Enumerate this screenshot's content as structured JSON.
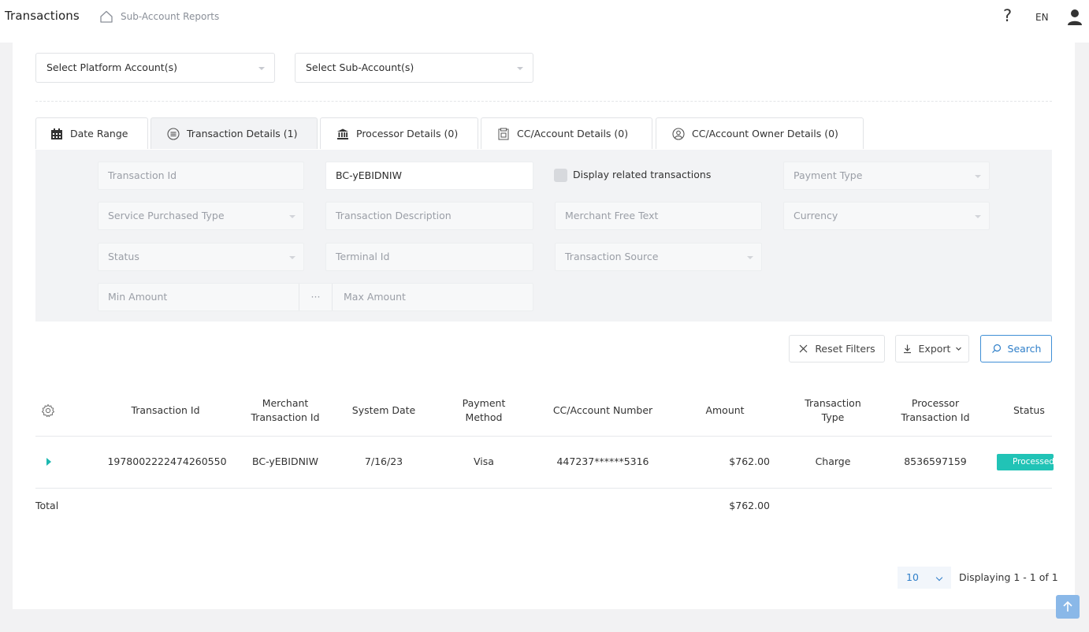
{
  "header": {
    "title": "Transactions",
    "breadcrumb": "Sub-Account Reports",
    "help_label": "?",
    "language": "EN"
  },
  "account_filters": {
    "platform_placeholder": "Select Platform Account(s)",
    "subaccount_placeholder": "Select Sub-Account(s)"
  },
  "tabs": [
    {
      "label": "Date Range",
      "icon": "calendar-icon"
    },
    {
      "label": "Transaction Details (1)",
      "icon": "list-icon",
      "active": true
    },
    {
      "label": "Processor Details (0)",
      "icon": "bank-icon"
    },
    {
      "label": "CC/Account Details (0)",
      "icon": "card-icon"
    },
    {
      "label": "CC/Account Owner Details (0)",
      "icon": "owner-icon"
    }
  ],
  "filters": {
    "transaction_id": "Transaction Id",
    "merchant_transaction_id_value": "BC-yEBIDNIW",
    "display_related": "Display related transactions",
    "payment_type": "Payment Type",
    "service_purchased_type": "Service Purchased Type",
    "transaction_description": "Transaction Description",
    "merchant_free_text": "Merchant Free Text",
    "currency": "Currency",
    "status": "Status",
    "terminal_id": "Terminal Id",
    "transaction_source": "Transaction Source",
    "min_amount": "Min Amount",
    "range_separator": "···",
    "max_amount": "Max Amount"
  },
  "actions": {
    "reset": "Reset Filters",
    "export": "Export",
    "search": "Search"
  },
  "table": {
    "columns": {
      "transaction_id": "Transaction Id",
      "merchant_transaction_id_1": "Merchant",
      "merchant_transaction_id_2": "Transaction Id",
      "system_date": "System Date",
      "payment_method_1": "Payment",
      "payment_method_2": "Method",
      "cc_account_number": "CC/Account Number",
      "amount": "Amount",
      "transaction_type_1": "Transaction",
      "transaction_type_2": "Type",
      "processor_transaction_id_1": "Processor",
      "processor_transaction_id_2": "Transaction Id",
      "status": "Status"
    },
    "rows": [
      {
        "transaction_id": "1978002222474260550",
        "merchant_transaction_id": "BC-yEBIDNIW",
        "system_date": "7/16/23",
        "payment_method": "Visa",
        "cc_account_number": "447237******5316",
        "amount": "$762.00",
        "transaction_type": "Charge",
        "processor_transaction_id": "8536597159",
        "status": "Processed"
      }
    ],
    "total_label": "Total",
    "total_amount": "$762.00"
  },
  "pagination": {
    "page_size": "10",
    "info": "Displaying 1 - 1 of 1"
  },
  "colors": {
    "accent": "#2f7fc9",
    "status_processed": "#21c3b6"
  }
}
